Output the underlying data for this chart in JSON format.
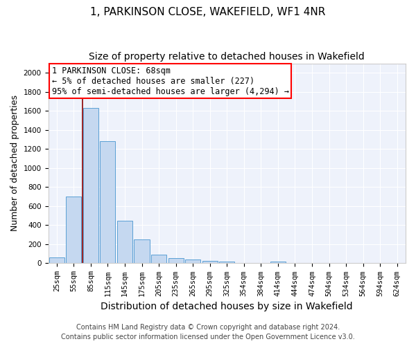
{
  "title1": "1, PARKINSON CLOSE, WAKEFIELD, WF1 4NR",
  "title2": "Size of property relative to detached houses in Wakefield",
  "xlabel": "Distribution of detached houses by size in Wakefield",
  "ylabel": "Number of detached properties",
  "bar_labels": [
    "25sqm",
    "55sqm",
    "85sqm",
    "115sqm",
    "145sqm",
    "175sqm",
    "205sqm",
    "235sqm",
    "265sqm",
    "295sqm",
    "325sqm",
    "354sqm",
    "384sqm",
    "414sqm",
    "444sqm",
    "474sqm",
    "504sqm",
    "534sqm",
    "564sqm",
    "594sqm",
    "624sqm"
  ],
  "bar_values": [
    65,
    700,
    1630,
    1285,
    445,
    253,
    88,
    55,
    38,
    28,
    15,
    0,
    0,
    17,
    0,
    0,
    0,
    0,
    0,
    0,
    0
  ],
  "bar_color": "#c5d8f0",
  "bar_edge_color": "#5a9fd4",
  "annotation_box_text": "1 PARKINSON CLOSE: 68sqm\n← 5% of detached houses are smaller (227)\n95% of semi-detached houses are larger (4,294) →",
  "annotation_box_color": "red",
  "vline_x": 1.5,
  "vline_color": "#8b0000",
  "ylim": [
    0,
    2100
  ],
  "yticks": [
    0,
    200,
    400,
    600,
    800,
    1000,
    1200,
    1400,
    1600,
    1800,
    2000
  ],
  "footnote1": "Contains HM Land Registry data © Crown copyright and database right 2024.",
  "footnote2": "Contains public sector information licensed under the Open Government Licence v3.0.",
  "background_color": "#eef2fb",
  "title1_fontsize": 11,
  "title2_fontsize": 10,
  "xlabel_fontsize": 10,
  "ylabel_fontsize": 9,
  "tick_fontsize": 7.5,
  "annotation_fontsize": 8.5,
  "footnote_fontsize": 7
}
